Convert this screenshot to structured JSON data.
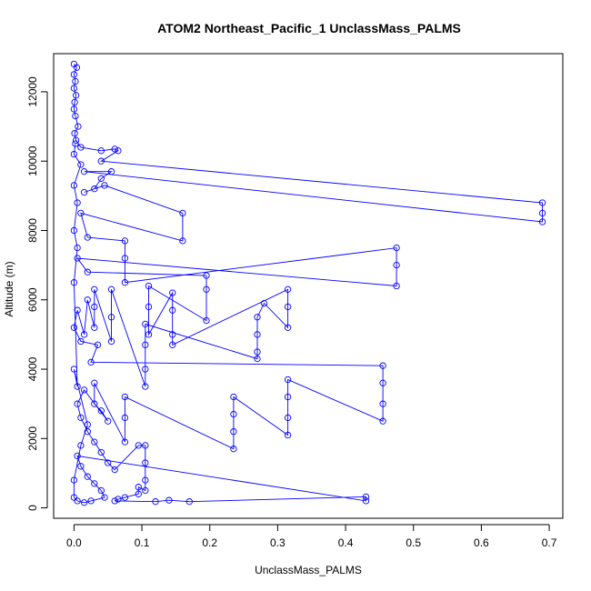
{
  "chart_data": {
    "type": "scatter",
    "title": "ATOM2 Northeast_Pacific_1 UnclassMass_PALMS",
    "xlabel": "UnclassMass_PALMS",
    "ylabel": "Altitude (m)",
    "xlim": [
      -0.03,
      0.72
    ],
    "ylim": [
      -300,
      13100
    ],
    "x_ticks": [
      0.0,
      0.1,
      0.2,
      0.3,
      0.4,
      0.5,
      0.6,
      0.7
    ],
    "x_tick_labels": [
      "0.0",
      "0.1",
      "0.2",
      "0.3",
      "0.4",
      "0.5",
      "0.6",
      "0.7"
    ],
    "y_ticks": [
      0,
      2000,
      4000,
      6000,
      8000,
      10000,
      12000
    ],
    "y_tick_labels": [
      "0",
      "2000",
      "4000",
      "6000",
      "8000",
      "10000",
      "12000"
    ],
    "grid": false,
    "legend": "none",
    "marker": "open-circle",
    "color": "#0000ff",
    "series": [
      {
        "points": [
          [
            0.0,
            12800
          ],
          [
            0.004,
            12700
          ],
          [
            0.0,
            12500
          ],
          [
            0.002,
            12300
          ],
          [
            0.0,
            12100
          ],
          [
            0.003,
            11900
          ],
          [
            0.001,
            11700
          ],
          [
            0.0,
            11500
          ],
          [
            0.002,
            11300
          ],
          [
            0.006,
            11000
          ],
          [
            0.001,
            10800
          ],
          [
            0.003,
            10600
          ],
          [
            0.01,
            10400
          ],
          [
            0.04,
            10300
          ],
          [
            0.06,
            10350
          ],
          [
            0.065,
            10300
          ],
          [
            0.04,
            10000
          ],
          [
            0.69,
            8800
          ],
          [
            0.69,
            8500
          ],
          [
            0.69,
            8250
          ],
          [
            0.015,
            9700
          ],
          [
            0.055,
            9700
          ],
          [
            0.04,
            9500
          ],
          [
            0.03,
            9200
          ],
          [
            0.015,
            9100
          ],
          [
            0.045,
            9300
          ],
          [
            0.16,
            8500
          ],
          [
            0.16,
            7700
          ],
          [
            0.01,
            8500
          ],
          [
            0.02,
            7800
          ],
          [
            0.075,
            7700
          ],
          [
            0.075,
            7200
          ],
          [
            0.075,
            6500
          ],
          [
            0.475,
            7500
          ],
          [
            0.475,
            7000
          ],
          [
            0.475,
            6400
          ],
          [
            0.005,
            7200
          ],
          [
            0.02,
            6800
          ],
          [
            0.195,
            6700
          ],
          [
            0.195,
            6300
          ],
          [
            0.195,
            5400
          ],
          [
            0.11,
            6400
          ],
          [
            0.11,
            5800
          ],
          [
            0.11,
            5000
          ],
          [
            0.145,
            6200
          ],
          [
            0.145,
            5700
          ],
          [
            0.145,
            5000
          ],
          [
            0.145,
            4700
          ],
          [
            0.315,
            6300
          ],
          [
            0.315,
            5800
          ],
          [
            0.315,
            5200
          ],
          [
            0.28,
            5900
          ],
          [
            0.27,
            5500
          ],
          [
            0.27,
            5000
          ],
          [
            0.27,
            4500
          ],
          [
            0.27,
            4300
          ],
          [
            0.105,
            5300
          ],
          [
            0.105,
            4700
          ],
          [
            0.105,
            4000
          ],
          [
            0.105,
            3500
          ],
          [
            0.055,
            6300
          ],
          [
            0.055,
            5500
          ],
          [
            0.055,
            4800
          ],
          [
            0.03,
            6300
          ],
          [
            0.03,
            5800
          ],
          [
            0.03,
            5200
          ],
          [
            0.02,
            6000
          ],
          [
            0.015,
            5000
          ],
          [
            0.005,
            5700
          ],
          [
            0.0,
            5200
          ],
          [
            0.01,
            4800
          ],
          [
            0.035,
            4700
          ],
          [
            0.025,
            4200
          ],
          [
            0.455,
            4100
          ],
          [
            0.455,
            3600
          ],
          [
            0.455,
            3000
          ],
          [
            0.455,
            2500
          ],
          [
            0.315,
            3700
          ],
          [
            0.315,
            3200
          ],
          [
            0.315,
            2600
          ],
          [
            0.315,
            2100
          ],
          [
            0.235,
            3200
          ],
          [
            0.235,
            2700
          ],
          [
            0.235,
            2200
          ],
          [
            0.235,
            1700
          ],
          [
            0.075,
            3200
          ],
          [
            0.075,
            2600
          ],
          [
            0.075,
            1900
          ],
          [
            0.03,
            3600
          ],
          [
            0.03,
            3000
          ],
          [
            0.04,
            2800
          ],
          [
            0.05,
            2500
          ],
          [
            0.015,
            3400
          ],
          [
            0.005,
            3000
          ],
          [
            0.01,
            2600
          ],
          [
            0.02,
            2200
          ],
          [
            0.03,
            1900
          ],
          [
            0.04,
            1600
          ],
          [
            0.05,
            1300
          ],
          [
            0.06,
            1100
          ],
          [
            0.095,
            1800
          ],
          [
            0.105,
            1800
          ],
          [
            0.105,
            1300
          ],
          [
            0.105,
            800
          ],
          [
            0.105,
            500
          ],
          [
            0.095,
            600
          ],
          [
            0.095,
            400
          ],
          [
            0.075,
            300
          ],
          [
            0.065,
            250
          ],
          [
            0.06,
            200
          ],
          [
            0.12,
            180
          ],
          [
            0.14,
            220
          ],
          [
            0.17,
            180
          ],
          [
            0.43,
            320
          ],
          [
            0.43,
            200
          ],
          [
            0.005,
            1500
          ],
          [
            0.01,
            1200
          ],
          [
            0.02,
            900
          ],
          [
            0.03,
            700
          ],
          [
            0.04,
            500
          ],
          [
            0.045,
            300
          ],
          [
            0.025,
            200
          ],
          [
            0.015,
            150
          ],
          [
            0.005,
            200
          ],
          [
            0.0,
            300
          ],
          [
            0.0,
            800
          ],
          [
            0.01,
            1800
          ],
          [
            0.02,
            2400
          ],
          [
            0.0,
            4000
          ],
          [
            0.005,
            3500
          ],
          [
            0.0,
            6500
          ],
          [
            0.005,
            7500
          ],
          [
            0.0,
            8000
          ],
          [
            0.005,
            8800
          ],
          [
            0.0,
            9300
          ],
          [
            0.01,
            9900
          ],
          [
            0.0,
            10200
          ],
          [
            0.002,
            10500
          ]
        ]
      }
    ]
  }
}
